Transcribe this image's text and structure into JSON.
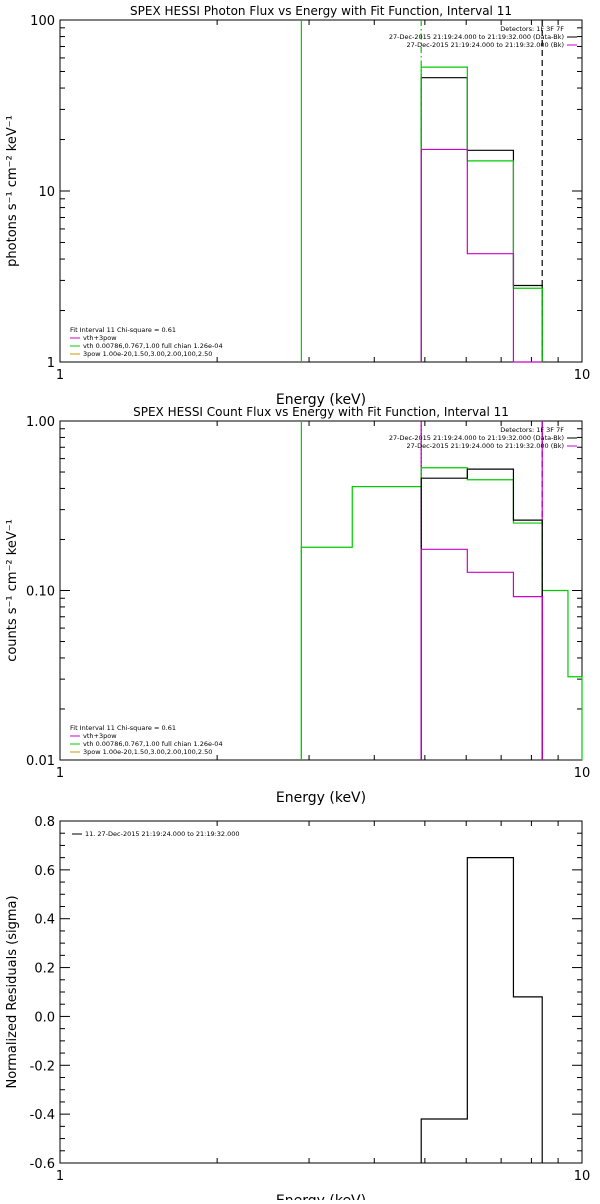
{
  "colors": {
    "data": "#000000",
    "model": "#00cc00",
    "vth": "#cc00cc",
    "power": "#cc9900",
    "axes": "#000000"
  },
  "chart_data": [
    {
      "type": "line",
      "title": "SPEX HESSI Photon Flux vs Energy with Fit Function, Interval 11",
      "xlabel": "Energy (keV)",
      "ylabel": "photons s⁻¹ cm⁻² keV⁻¹",
      "xscale": "log",
      "yscale": "log",
      "xlim": [
        1,
        10
      ],
      "ylim": [
        1,
        100
      ],
      "xticks": [
        {
          "v": 1,
          "label": "1"
        },
        {
          "v": 10,
          "label": "10"
        }
      ],
      "yticks": [
        {
          "v": 1,
          "label": "1"
        },
        {
          "v": 10,
          "label": "10"
        },
        {
          "v": 100,
          "label": "100"
        }
      ],
      "legend_topright": [
        {
          "text": "Detectors: 1F 3F 7F",
          "color": null
        },
        {
          "text": "27-Dec-2015 21:19:24.000 to 21:19:32.000 (Data-Bk)",
          "color": "#000000"
        },
        {
          "text": "27-Dec-2015 21:19:24.000 to 21:19:32.000 (Bk)",
          "color": "#cc00cc"
        }
      ],
      "legend_bottomleft": [
        {
          "text": "Fit Interval 11    Chi-square = 0.61",
          "color": null
        },
        {
          "text": "vth+3pow",
          "color": "#cc00cc"
        },
        {
          "text": "vth 0.00786,0.767,1.00  full chian 1.26e-04",
          "color": "#00cc00"
        },
        {
          "text": "3pow 1.00e-20,1.50,3.00,2.00,100,2.50",
          "color": "#cc9900"
        }
      ],
      "series": [
        {
          "color": "#000000",
          "edges": [
            4.92,
            6.03,
            7.39,
            8.39
          ],
          "values": [
            46,
            17.3,
            2.8
          ]
        },
        {
          "color": "#00cc00",
          "edges": [
            4.92,
            6.03,
            7.39,
            8.39
          ],
          "values": [
            53,
            15,
            2.7
          ]
        },
        {
          "color": "#cc00cc",
          "edges": [
            4.92,
            6.03,
            7.39,
            8.39
          ],
          "values": [
            17.5,
            4.3,
            1.0
          ]
        }
      ],
      "vlines": [
        {
          "x": 2.9,
          "color": "#00cc00",
          "style": "solid"
        },
        {
          "x": 4.92,
          "color": "#00cc00",
          "style": "dashdot"
        },
        {
          "x": 8.39,
          "color": "#000000",
          "style": "dashed"
        }
      ]
    },
    {
      "type": "line",
      "title": "SPEX HESSI Count Flux vs Energy with Fit Function, Interval 11",
      "xlabel": "Energy (keV)",
      "ylabel": "counts s⁻¹ cm⁻² keV⁻¹",
      "xscale": "log",
      "yscale": "log",
      "xlim": [
        1,
        10
      ],
      "ylim": [
        0.01,
        1
      ],
      "xticks": [
        {
          "v": 1,
          "label": "1"
        },
        {
          "v": 10,
          "label": "10"
        }
      ],
      "yticks": [
        {
          "v": 0.01,
          "label": "0.01"
        },
        {
          "v": 0.1,
          "label": "0.10"
        },
        {
          "v": 1,
          "label": "1.00"
        }
      ],
      "legend_topright": [
        {
          "text": "Detectors: 1F 3F 7F",
          "color": null
        },
        {
          "text": "27-Dec-2015 21:19:24.000 to 21:19:32.000 (Data-Bk)",
          "color": "#000000"
        },
        {
          "text": "27-Dec-2015 21:19:24.000 to 21:19:32.000 (Bk)",
          "color": "#cc00cc"
        }
      ],
      "legend_bottomleft": [
        {
          "text": "Fit Interval 11    Chi-square = 0.61",
          "color": null
        },
        {
          "text": "vth+3pow",
          "color": "#cc00cc"
        },
        {
          "text": "vth 0.00786,0.767,1.00  full chian 1.26e-04",
          "color": "#00cc00"
        },
        {
          "text": "3pow 1.00e-20,1.50,3.00,2.00,100,2.50",
          "color": "#cc9900"
        }
      ],
      "series": [
        {
          "color": "#00cc00",
          "edges": [
            2.9,
            3.63,
            4.92,
            6.03,
            7.39,
            8.39,
            9.4,
            10.0
          ],
          "values": [
            0.18,
            0.41,
            0.53,
            0.45,
            0.25,
            0.1,
            0.031
          ]
        },
        {
          "color": "#000000",
          "edges": [
            4.92,
            6.03,
            7.39,
            8.39
          ],
          "values": [
            0.46,
            0.52,
            0.26
          ]
        },
        {
          "color": "#cc00cc",
          "edges": [
            4.92,
            6.03,
            7.39,
            8.39
          ],
          "values": [
            0.175,
            0.128,
            0.092
          ]
        }
      ],
      "vlines": [
        {
          "x": 2.9,
          "color": "#00cc00",
          "style": "solid"
        },
        {
          "x": 4.92,
          "color": "#000000",
          "style": "dotted"
        },
        {
          "x": 4.92,
          "color": "#cc00cc",
          "style": "solid"
        },
        {
          "x": 8.39,
          "color": "#000000",
          "style": "dashed"
        },
        {
          "x": 8.39,
          "color": "#cc00cc",
          "style": "solid"
        }
      ]
    },
    {
      "type": "line",
      "title": "",
      "xlabel": "Energy (keV)",
      "ylabel": "Normalized Residuals (sigma)",
      "xscale": "log",
      "yscale": "linear",
      "xlim": [
        1,
        10
      ],
      "ylim": [
        -0.6,
        0.8
      ],
      "xticks": [
        {
          "v": 1,
          "label": "1"
        },
        {
          "v": 10,
          "label": "10"
        }
      ],
      "yticks": [
        {
          "v": -0.6,
          "label": "-0.6"
        },
        {
          "v": -0.4,
          "label": "-0.4"
        },
        {
          "v": -0.2,
          "label": "-0.2"
        },
        {
          "v": 0.0,
          "label": "0.0"
        },
        {
          "v": 0.2,
          "label": "0.2"
        },
        {
          "v": 0.4,
          "label": "0.4"
        },
        {
          "v": 0.6,
          "label": "0.6"
        },
        {
          "v": 0.8,
          "label": "0.8"
        }
      ],
      "legend_topleft": [
        {
          "text": "11. 27-Dec-2015 21:19:24.000 to 21:19:32.000",
          "color": "#000000"
        }
      ],
      "series": [
        {
          "color": "#000000",
          "edges": [
            4.92,
            6.03,
            7.39,
            8.39
          ],
          "values": [
            -0.42,
            0.65,
            0.08
          ],
          "drop_to": -0.6
        }
      ],
      "vlines": []
    }
  ]
}
